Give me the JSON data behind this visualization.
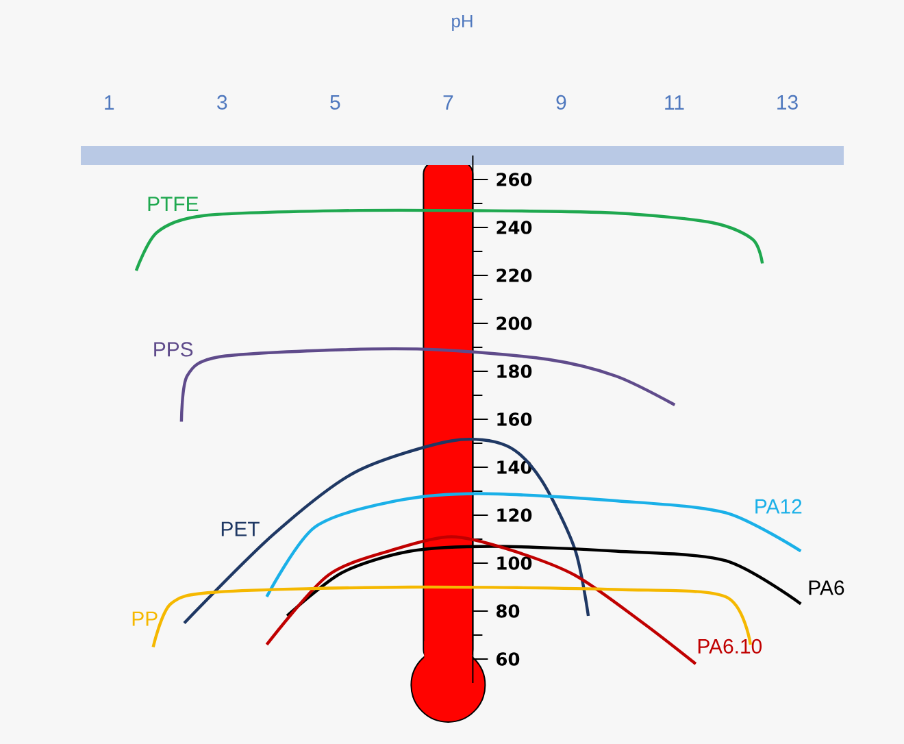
{
  "chart_data": {
    "type": "line",
    "xlabel": "pH",
    "xlim": [
      0.5,
      14
    ],
    "xticks": [
      1,
      3,
      5,
      7,
      9,
      11,
      13
    ],
    "ylim": [
      50,
      270
    ],
    "yticks": [
      60,
      80,
      100,
      120,
      140,
      160,
      180,
      200,
      220,
      240,
      260
    ],
    "marker": "none",
    "grid": false,
    "series": [
      {
        "name": "PTFE",
        "color": "#1fa84f",
        "x": [
          1.48,
          1.85,
          2.7,
          5.12,
          7.55,
          9.97,
          11.67,
          12.39,
          12.56
        ],
        "values": [
          222,
          238,
          245,
          247,
          247,
          246,
          242,
          235,
          225
        ]
      },
      {
        "name": "PPS",
        "color": "#5f4b8b",
        "x": [
          2.28,
          2.38,
          2.94,
          5.12,
          6.82,
          8.76,
          9.97,
          11.01
        ],
        "values": [
          159,
          178,
          186,
          189,
          189,
          185,
          178,
          166
        ]
      },
      {
        "name": "PET",
        "color": "#1f3864",
        "x": [
          2.33,
          3.91,
          5.36,
          7.06,
          8.03,
          8.64,
          9.24,
          9.48
        ],
        "values": [
          75,
          112,
          138,
          151,
          149,
          135,
          106,
          78
        ]
      },
      {
        "name": "PA12",
        "color": "#1ab0e8",
        "x": [
          3.79,
          4.64,
          6.09,
          7.55,
          9.97,
          11.91,
          13.24
        ],
        "values": [
          86,
          115,
          126,
          129,
          126,
          121,
          105
        ]
      },
      {
        "name": "PA6",
        "color": "#000000",
        "x": [
          4.15,
          5.12,
          6.33,
          7.79,
          9.97,
          11.91,
          13.24
        ],
        "values": [
          78,
          96,
          105,
          107,
          105,
          101,
          83
        ]
      },
      {
        "name": "PA6.10",
        "color": "#c00000",
        "x": [
          3.79,
          4.88,
          6.09,
          7.06,
          8.03,
          9.24,
          10.45,
          11.38
        ],
        "values": [
          66,
          95,
          106,
          111,
          106,
          95,
          75,
          58
        ]
      },
      {
        "name": "PP",
        "color": "#f5b800",
        "x": [
          1.78,
          2.09,
          2.94,
          6.33,
          9.97,
          11.91,
          12.35
        ],
        "values": [
          65,
          83,
          88,
          90,
          89,
          86,
          66
        ]
      }
    ]
  }
}
